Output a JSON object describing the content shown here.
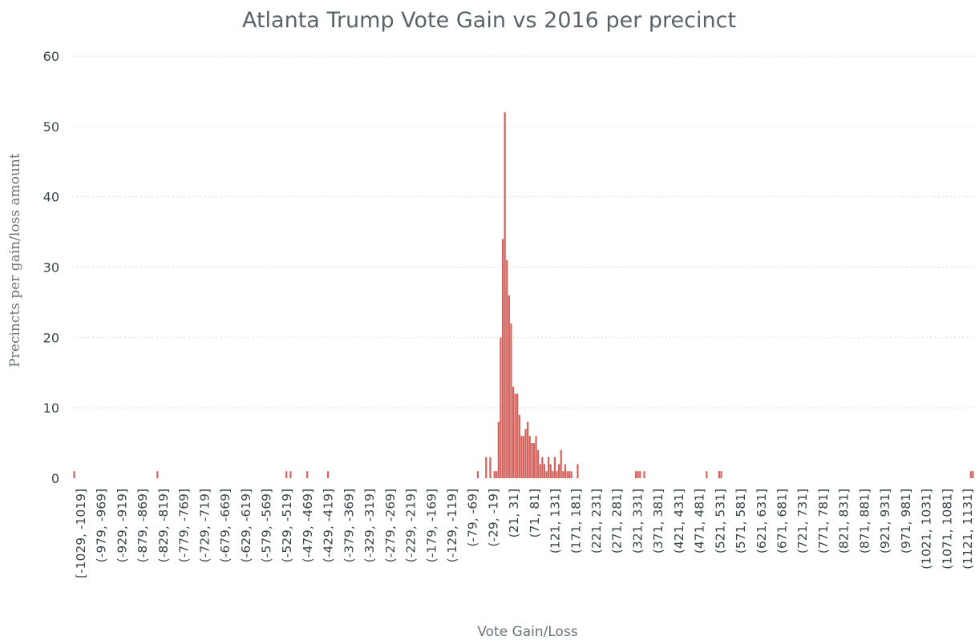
{
  "chart_data": {
    "type": "bar",
    "title": "Atlanta Trump Vote Gain vs 2016 per precinct",
    "xlabel": "Vote Gain/Loss",
    "ylabel": "Precincts per gain/loss amount",
    "ylim": [
      0,
      60
    ],
    "yticks": [
      0,
      10,
      20,
      30,
      40,
      50,
      60
    ],
    "grid": true,
    "bar_color": "#d4605a",
    "x_ticks": [
      "[-1029, -1019]",
      "(-979, -969]",
      "(-929, -919]",
      "(-879, -869]",
      "(-829, -819]",
      "(-779, -769]",
      "(-729, -719]",
      "(-679, -669]",
      "(-629, -619]",
      "(-579, -569]",
      "(-529, -519]",
      "(-479, -469]",
      "(-429, -419]",
      "(-379, -369]",
      "(-329, -319]",
      "(-279, -269]",
      "(-229, -219]",
      "(-179, -169]",
      "(-129, -119]",
      "(-79, -69]",
      "(-29, -19]",
      "(21, 31]",
      "(71, 81]",
      "(121, 131]",
      "(171, 181]",
      "(221, 231]",
      "(271, 281]",
      "(321, 331]",
      "(371, 381]",
      "(421, 431]",
      "(471, 481]",
      "(521, 531]",
      "(571, 581]",
      "(621, 631]",
      "(671, 681]",
      "(721, 731]",
      "(771, 781]",
      "(821, 831]",
      "(871, 881]",
      "(921, 931]",
      "(971, 981]",
      "(1021, 1031]",
      "(1071, 1081]",
      "(1121, 1131]"
    ],
    "bin_width": 10,
    "x_min": -1029,
    "x_max": 1141,
    "bars": [
      {
        "x": -1024,
        "value": 1
      },
      {
        "x": -824,
        "value": 1
      },
      {
        "x": -514,
        "value": 1
      },
      {
        "x": -504,
        "value": 1
      },
      {
        "x": -464,
        "value": 1
      },
      {
        "x": -414,
        "value": 1
      },
      {
        "x": -54,
        "value": 1
      },
      {
        "x": -34,
        "value": 3
      },
      {
        "x": -24,
        "value": 3
      },
      {
        "x": -14,
        "value": 1
      },
      {
        "x": -9,
        "value": 1
      },
      {
        "x": -4,
        "value": 8
      },
      {
        "x": 1,
        "value": 20
      },
      {
        "x": 6,
        "value": 34
      },
      {
        "x": 11,
        "value": 52
      },
      {
        "x": 16,
        "value": 31
      },
      {
        "x": 21,
        "value": 26
      },
      {
        "x": 26,
        "value": 22
      },
      {
        "x": 31,
        "value": 13
      },
      {
        "x": 36,
        "value": 12
      },
      {
        "x": 41,
        "value": 12
      },
      {
        "x": 46,
        "value": 9
      },
      {
        "x": 51,
        "value": 6
      },
      {
        "x": 56,
        "value": 6
      },
      {
        "x": 61,
        "value": 7
      },
      {
        "x": 66,
        "value": 8
      },
      {
        "x": 71,
        "value": 6
      },
      {
        "x": 76,
        "value": 5
      },
      {
        "x": 81,
        "value": 5
      },
      {
        "x": 86,
        "value": 6
      },
      {
        "x": 91,
        "value": 4
      },
      {
        "x": 96,
        "value": 2
      },
      {
        "x": 101,
        "value": 3
      },
      {
        "x": 106,
        "value": 2
      },
      {
        "x": 111,
        "value": 1
      },
      {
        "x": 116,
        "value": 3
      },
      {
        "x": 121,
        "value": 2
      },
      {
        "x": 126,
        "value": 1
      },
      {
        "x": 131,
        "value": 3
      },
      {
        "x": 136,
        "value": 1
      },
      {
        "x": 141,
        "value": 2
      },
      {
        "x": 146,
        "value": 4
      },
      {
        "x": 151,
        "value": 1
      },
      {
        "x": 156,
        "value": 2
      },
      {
        "x": 161,
        "value": 1
      },
      {
        "x": 166,
        "value": 1
      },
      {
        "x": 171,
        "value": 1
      },
      {
        "x": 186,
        "value": 2
      },
      {
        "x": 326,
        "value": 1
      },
      {
        "x": 331,
        "value": 1
      },
      {
        "x": 336,
        "value": 1
      },
      {
        "x": 346,
        "value": 1
      },
      {
        "x": 496,
        "value": 1
      },
      {
        "x": 526,
        "value": 1
      },
      {
        "x": 531,
        "value": 1
      },
      {
        "x": 1131,
        "value": 1
      },
      {
        "x": 1136,
        "value": 1
      }
    ]
  }
}
